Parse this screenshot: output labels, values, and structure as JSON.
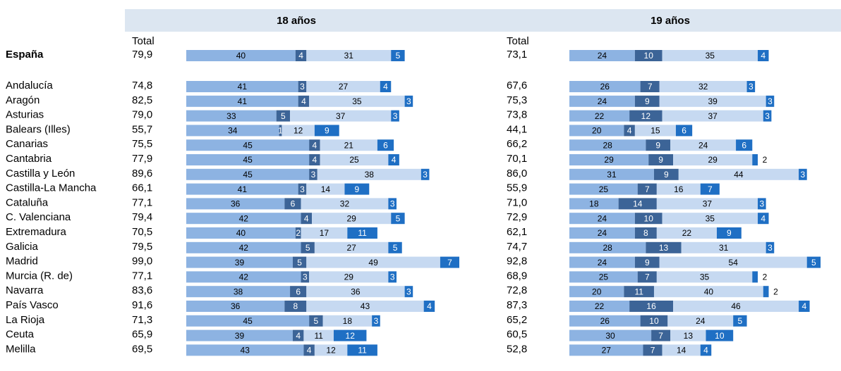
{
  "chart_data": [
    {
      "type": "stacked-bar",
      "title": "18 años",
      "total_label": "Total",
      "xlim": [
        0,
        100
      ],
      "categories": [
        "España",
        "Andalucía",
        "Aragón",
        "Asturias",
        "Balears (Illes)",
        "Canarias",
        "Cantabria",
        "Castilla y León",
        "Castilla-La Mancha",
        "Cataluña",
        "C. Valenciana",
        "Extremadura",
        "Galicia",
        "Madrid",
        "Murcia (R. de)",
        "Navarra",
        "País Vasco",
        "La Rioja",
        "Ceuta",
        "Melilla"
      ],
      "totals": [
        "79,9",
        "74,8",
        "82,5",
        "79,0",
        "55,7",
        "75,5",
        "77,9",
        "89,6",
        "66,1",
        "77,1",
        "79,4",
        "70,5",
        "79,5",
        "99,0",
        "77,1",
        "83,6",
        "91,6",
        "71,3",
        "65,9",
        "69,5"
      ],
      "series": [
        {
          "color": "#8db3e2",
          "values": [
            40,
            41,
            41,
            33,
            34,
            45,
            45,
            45,
            41,
            36,
            42,
            40,
            42,
            39,
            42,
            38,
            36,
            45,
            39,
            43
          ]
        },
        {
          "color": "#3c6497",
          "values": [
            4,
            3,
            4,
            5,
            1,
            4,
            4,
            3,
            3,
            6,
            4,
            2,
            5,
            5,
            3,
            6,
            8,
            5,
            4,
            4
          ]
        },
        {
          "color": "#c6d9f1",
          "values": [
            31,
            27,
            35,
            37,
            12,
            21,
            25,
            38,
            14,
            32,
            29,
            17,
            27,
            49,
            29,
            36,
            43,
            18,
            11,
            12
          ]
        },
        {
          "color": "#1f6fc4",
          "values": [
            5,
            4,
            3,
            3,
            9,
            6,
            4,
            3,
            9,
            3,
            5,
            11,
            5,
            7,
            3,
            3,
            4,
            3,
            12,
            11
          ]
        }
      ]
    },
    {
      "type": "stacked-bar",
      "title": "19 años",
      "total_label": "Total",
      "xlim": [
        0,
        100
      ],
      "totals": [
        "73,1",
        "67,6",
        "75,3",
        "73,8",
        "44,1",
        "66,2",
        "70,1",
        "86,0",
        "55,9",
        "71,0",
        "72,9",
        "62,1",
        "74,7",
        "92,8",
        "68,9",
        "72,8",
        "87,3",
        "65,2",
        "60,5",
        "52,8"
      ],
      "series": [
        {
          "color": "#8db3e2",
          "values": [
            24,
            26,
            24,
            22,
            20,
            28,
            29,
            31,
            25,
            18,
            24,
            24,
            28,
            24,
            25,
            20,
            22,
            26,
            30,
            27
          ]
        },
        {
          "color": "#3c6497",
          "values": [
            10,
            7,
            9,
            12,
            4,
            9,
            9,
            9,
            7,
            14,
            10,
            8,
            13,
            9,
            7,
            11,
            16,
            10,
            7,
            7
          ]
        },
        {
          "color": "#c6d9f1",
          "values": [
            35,
            32,
            39,
            37,
            15,
            24,
            29,
            44,
            16,
            37,
            35,
            22,
            31,
            54,
            35,
            40,
            46,
            24,
            13,
            14
          ]
        },
        {
          "color": "#1f6fc4",
          "values": [
            4,
            3,
            3,
            3,
            6,
            6,
            2,
            3,
            7,
            3,
            4,
            9,
            3,
            5,
            2,
            2,
            4,
            5,
            10,
            4
          ]
        }
      ]
    }
  ]
}
